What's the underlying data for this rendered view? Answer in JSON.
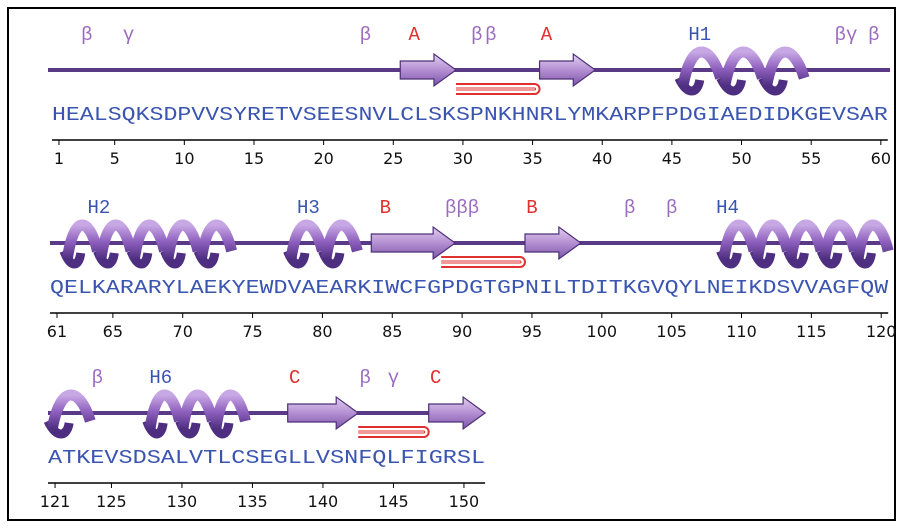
{
  "rows": [
    {
      "sequence": "HEALSQKSDPVVSYRETVSEESNVLCLSKSPNKHNRLYMKARPFPDGIAEDIDKGEVSAR",
      "numbers": [
        1,
        5,
        10,
        15,
        20,
        25,
        30,
        35,
        40,
        45,
        50,
        55,
        60
      ],
      "labels": [
        {
          "text": "β",
          "color": "#9b6bc0"
        },
        {
          "text": "γ",
          "color": "#9b6bc0"
        },
        {
          "text": "β",
          "color": "#9b6bc0"
        },
        {
          "text": "A",
          "color": "#e0302e"
        },
        {
          "text": "β",
          "color": "#9b6bc0"
        },
        {
          "text": "β",
          "color": "#9b6bc0"
        },
        {
          "text": "A",
          "color": "#e0302e"
        },
        {
          "text": "H1",
          "color": "#3a55b0"
        },
        {
          "text": "βγ",
          "color": "#9b6bc0"
        },
        {
          "text": "β",
          "color": "#9b6bc0"
        }
      ]
    },
    {
      "sequence": "QELKARARYLAEKYEWDVAEARKIWCFGPDGTGPNILTDITKGVQYLNEIKDSVVAGFQW",
      "numbers": [
        61,
        65,
        70,
        75,
        80,
        85,
        90,
        95,
        100,
        105,
        110,
        115,
        120
      ],
      "labels": [
        {
          "text": "H2",
          "color": "#3a55b0"
        },
        {
          "text": "H3",
          "color": "#3a55b0"
        },
        {
          "text": "B",
          "color": "#e0302e"
        },
        {
          "text": "βββ",
          "color": "#9b6bc0"
        },
        {
          "text": "B",
          "color": "#e0302e"
        },
        {
          "text": "β",
          "color": "#9b6bc0"
        },
        {
          "text": "β",
          "color": "#9b6bc0"
        },
        {
          "text": "H4",
          "color": "#3a55b0"
        }
      ]
    },
    {
      "sequence": "ATKEVSDSALVTLCSEGLLVSNFQLFIGRSL",
      "numbers": [
        121,
        125,
        130,
        135,
        140,
        145,
        150
      ],
      "labels": [
        {
          "text": "β",
          "color": "#9b6bc0"
        },
        {
          "text": "H6",
          "color": "#3a55b0"
        },
        {
          "text": "C",
          "color": "#e0302e"
        },
        {
          "text": "β",
          "color": "#9b6bc0"
        },
        {
          "text": "γ",
          "color": "#9b6bc0"
        },
        {
          "text": "C",
          "color": "#e0302e"
        }
      ]
    }
  ]
}
